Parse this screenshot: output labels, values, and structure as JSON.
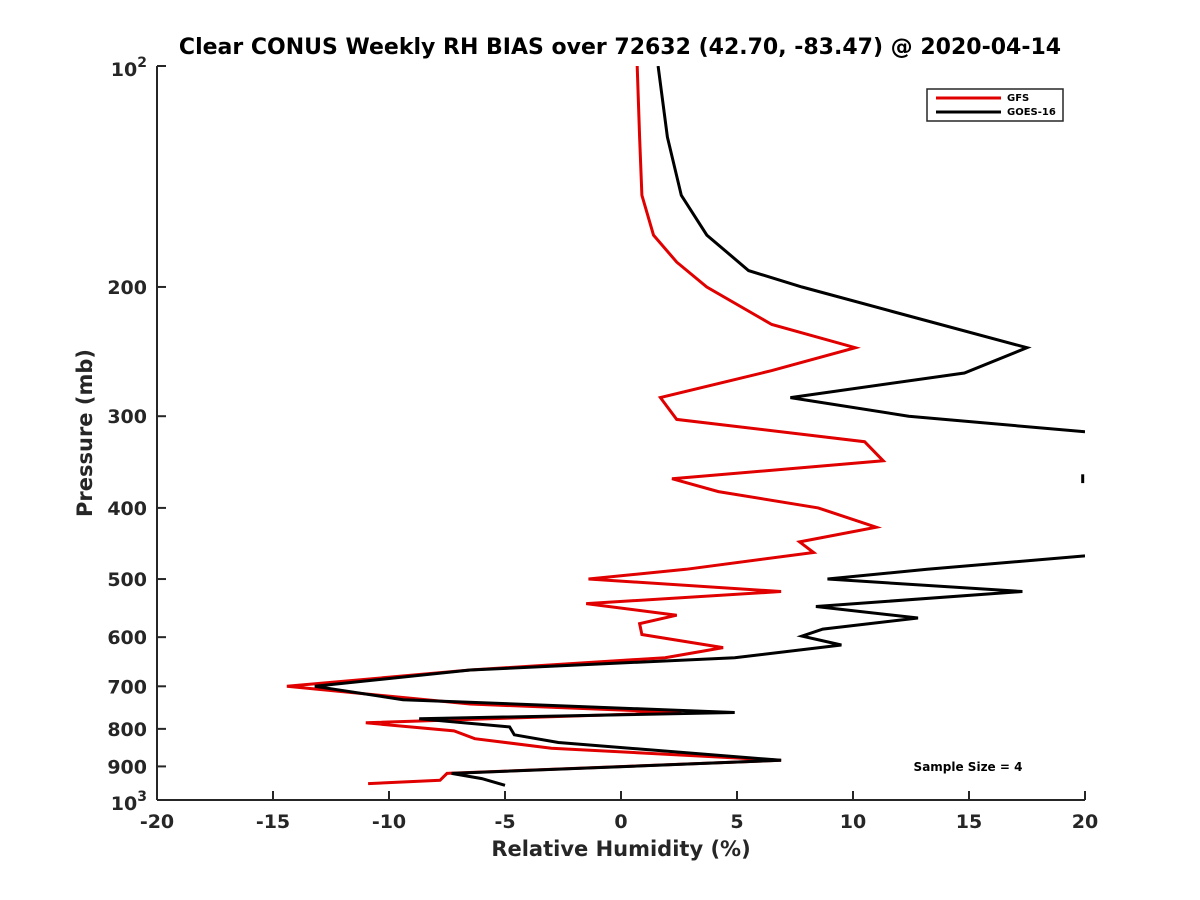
{
  "chart_data": {
    "type": "line",
    "title": "Clear CONUS Weekly RH BIAS over 72632 (42.70, -83.47) @ 2020-04-14",
    "xlabel": "Relative Humidity (%)",
    "ylabel": "Pressure (mb)",
    "xlim": [
      -20,
      20
    ],
    "ylim": [
      100,
      1000
    ],
    "yscale": "log",
    "y_reversed": true,
    "x_ticks": [
      -20,
      -15,
      -10,
      -5,
      0,
      5,
      10,
      15,
      20
    ],
    "x_tick_labels": [
      "-20",
      "-15",
      "-10",
      "-5",
      "0",
      "5",
      "10",
      "15",
      "20"
    ],
    "y_ticks": [
      200,
      300,
      400,
      500,
      600,
      700,
      800,
      900
    ],
    "y_tick_labels": [
      "200",
      "300",
      "400",
      "500",
      "600",
      "700",
      "800",
      "900"
    ],
    "y_decade_labels": [
      {
        "value": 100,
        "base": "10",
        "exp": "2"
      },
      {
        "value": 1000,
        "base": "10",
        "exp": "3"
      }
    ],
    "legend_position": "top-right",
    "annotation": "Sample Size = 4",
    "colors": {
      "GFS": "#e00000",
      "GOES-16": "#000000",
      "axis": "#262626"
    },
    "series": [
      {
        "name": "GFS",
        "points": [
          [
            0.7,
            100
          ],
          [
            0.8,
            125
          ],
          [
            0.9,
            150
          ],
          [
            1.4,
            170
          ],
          [
            2.4,
            185
          ],
          [
            3.7,
            200
          ],
          [
            6.5,
            225
          ],
          [
            10.1,
            242
          ],
          [
            6.5,
            260
          ],
          [
            1.7,
            283
          ],
          [
            2.4,
            303
          ],
          [
            10.5,
            325
          ],
          [
            11.3,
            345
          ],
          [
            2.2,
            365
          ],
          [
            4.2,
            380
          ],
          [
            8.5,
            400
          ],
          [
            11.0,
            425
          ],
          [
            7.7,
            445
          ],
          [
            8.3,
            460
          ],
          [
            2.8,
            485
          ],
          [
            -1.4,
            500
          ],
          [
            6.9,
            520
          ],
          [
            -1.5,
            540
          ],
          [
            2.4,
            560
          ],
          [
            0.8,
            575
          ],
          [
            0.9,
            595
          ],
          [
            4.4,
            620
          ],
          [
            1.9,
            640
          ],
          [
            -6.5,
            665
          ],
          [
            -14.4,
            700
          ],
          [
            -6.5,
            740
          ],
          [
            2.6,
            760
          ],
          [
            -11.0,
            785
          ],
          [
            -7.2,
            805
          ],
          [
            -6.3,
            825
          ],
          [
            -3.0,
            850
          ],
          [
            6.9,
            883
          ],
          [
            -7.5,
            920
          ],
          [
            -7.8,
            940
          ],
          [
            -10.9,
            950
          ]
        ]
      },
      {
        "name": "GOES-16",
        "segments": [
          [
            [
              1.6,
              100
            ],
            [
              2.0,
              125
            ],
            [
              2.6,
              150
            ],
            [
              3.7,
              170
            ],
            [
              5.5,
              190
            ],
            [
              7.8,
              200
            ],
            [
              11.7,
              216
            ],
            [
              17.5,
              242
            ],
            [
              14.8,
              262
            ],
            [
              7.3,
              283
            ],
            [
              12.4,
              300
            ],
            [
              20.0,
              315
            ]
          ],
          [
            [
              19.9,
              360
            ],
            [
              19.9,
              370
            ]
          ],
          [
            [
              20.0,
              465
            ],
            [
              13.2,
              485
            ],
            [
              8.9,
              500
            ],
            [
              17.3,
              520
            ],
            [
              8.4,
              545
            ],
            [
              12.8,
              565
            ],
            [
              8.7,
              585
            ],
            [
              7.8,
              598
            ],
            [
              9.5,
              615
            ],
            [
              4.9,
              640
            ],
            [
              -6.5,
              665
            ],
            [
              -13.2,
              700
            ],
            [
              -9.4,
              730
            ],
            [
              4.9,
              760
            ],
            [
              -8.7,
              775
            ],
            [
              -4.8,
              795
            ],
            [
              -4.6,
              815
            ],
            [
              -2.7,
              835
            ],
            [
              6.9,
              883
            ],
            [
              -7.3,
              920
            ],
            [
              -6.0,
              935
            ],
            [
              -5.0,
              955
            ]
          ]
        ]
      }
    ]
  }
}
